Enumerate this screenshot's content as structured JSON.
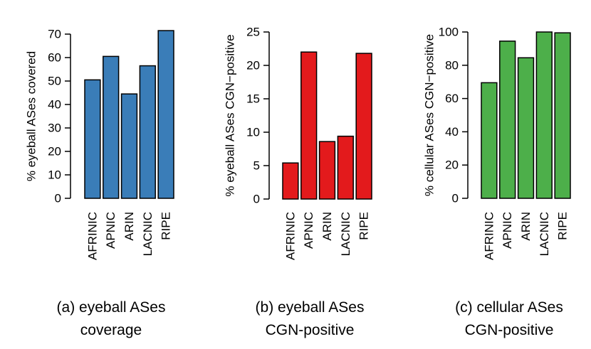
{
  "chart_data": [
    {
      "type": "bar",
      "categories": [
        "AFRINIC",
        "APNIC",
        "ARIN",
        "LACNIC",
        "RIPE"
      ],
      "values": [
        50.5,
        60.5,
        44.5,
        56.5,
        71.5
      ],
      "ylabel": "% eyeball ASes covered",
      "yticks": [
        0,
        10,
        20,
        30,
        40,
        50,
        60,
        70
      ],
      "ylim": [
        0,
        70
      ],
      "color": "#3a7db8",
      "caption": [
        "(a) eyeball ASes",
        "coverage"
      ]
    },
    {
      "type": "bar",
      "categories": [
        "AFRINIC",
        "APNIC",
        "ARIN",
        "LACNIC",
        "RIPE"
      ],
      "values": [
        5.4,
        22.0,
        8.6,
        9.4,
        21.8
      ],
      "ylabel": "% eyeball ASes CGN−positive",
      "yticks": [
        0,
        5,
        10,
        15,
        20,
        25
      ],
      "ylim": [
        0,
        25
      ],
      "color": "#e31a1c",
      "caption": [
        "(b) eyeball ASes",
        "CGN-positive"
      ]
    },
    {
      "type": "bar",
      "categories": [
        "AFRINIC",
        "APNIC",
        "ARIN",
        "LACNIC",
        "RIPE"
      ],
      "values": [
        69.5,
        94.5,
        84.5,
        100,
        99.5
      ],
      "ylabel": "% cellular ASes CGN−positive",
      "yticks": [
        0,
        20,
        40,
        60,
        80,
        100
      ],
      "ylim": [
        0,
        100
      ],
      "color": "#4daf4a",
      "caption": [
        "(c) cellular ASes",
        "CGN-positive"
      ]
    }
  ]
}
